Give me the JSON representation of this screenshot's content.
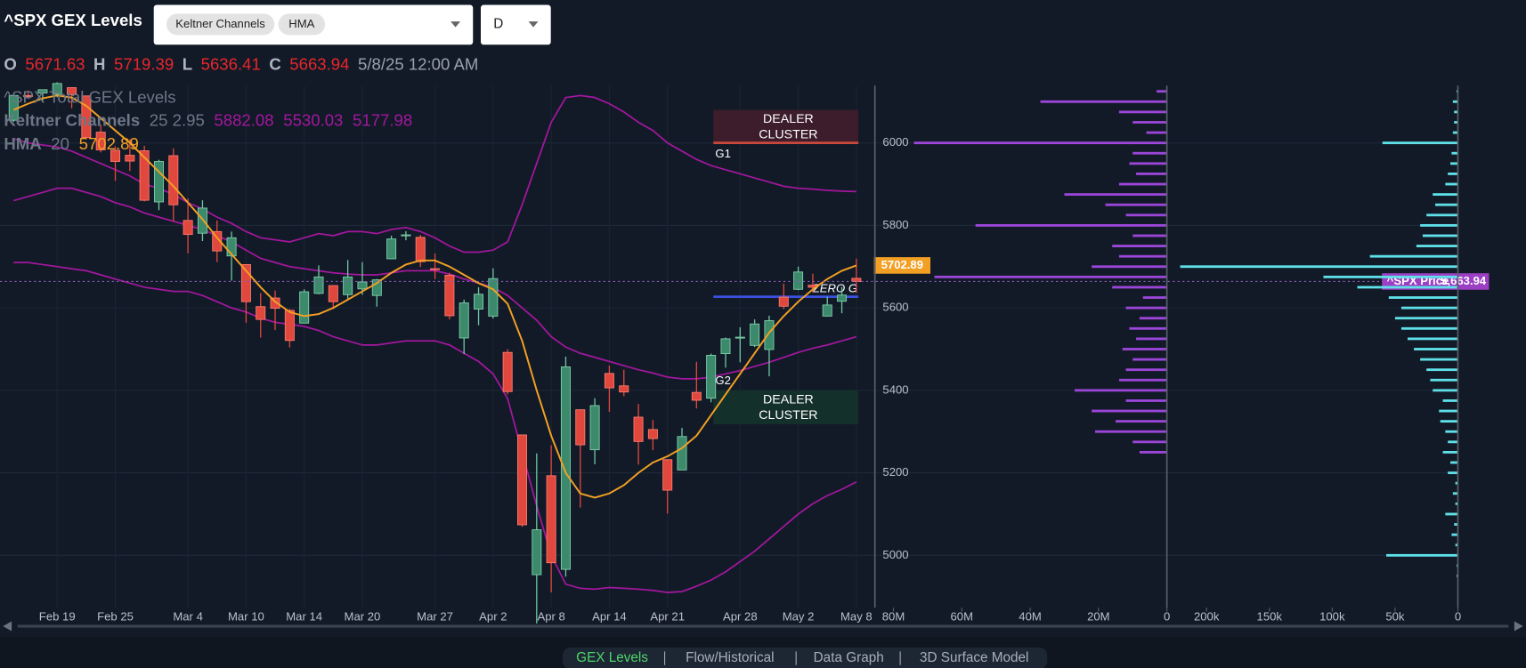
{
  "header": {
    "title": "^SPX GEX Levels",
    "indicators": [
      "Keltner Channels",
      "HMA"
    ],
    "interval": "D"
  },
  "ohlc_bar": {
    "labels": [
      "O",
      "H",
      "L",
      "C"
    ],
    "datetime": "5/8/25 12:00 AM"
  },
  "chart_data": [
    {
      "type": "candlestick",
      "legend_title": "^SPX Total GEX Levels",
      "categories": [
        null,
        null,
        null,
        "Feb 19",
        null,
        null,
        null,
        "Feb 25",
        null,
        null,
        null,
        null,
        "Mar 4",
        null,
        null,
        null,
        "Mar 10",
        null,
        null,
        null,
        "Mar 14",
        null,
        null,
        null,
        "Mar 20",
        null,
        null,
        null,
        null,
        "Mar 27",
        null,
        null,
        null,
        "Apr 2",
        null,
        null,
        null,
        "Apr 8",
        null,
        null,
        null,
        "Apr 14",
        null,
        null,
        null,
        "Apr 21",
        null,
        null,
        null,
        null,
        "Apr 28",
        null,
        null,
        null,
        "May 2",
        null,
        null,
        null,
        "May 8"
      ],
      "open": [
        6055,
        6115,
        6121,
        6118,
        6134,
        6114,
        6026,
        5982,
        5970,
        5981,
        5857,
        5969,
        5812,
        5781,
        5785,
        5726,
        5705,
        5603,
        5624,
        5594,
        5563,
        5635,
        5654,
        5632,
        5646,
        5630,
        5719,
        5775,
        5771,
        5695,
        5679,
        5527,
        5597,
        5580,
        5492,
        5292,
        4953,
        5193,
        4966,
        5353,
        5256,
        5441,
        5411,
        5335,
        5305,
        5232,
        5207,
        5395,
        5381,
        5489,
        5529,
        5509,
        5499,
        5626,
        5645,
        5655,
        5580,
        5616,
        5671.63
      ],
      "high": [
        6116,
        6127,
        6129,
        6147,
        6134,
        6114,
        6044,
        5992,
        6009,
        5993,
        5959,
        5987,
        5865,
        5861,
        5812,
        5785,
        5705,
        5636,
        5642,
        5597,
        5645,
        5703,
        5654,
        5716,
        5711,
        5670,
        5775,
        5786,
        5777,
        5732,
        5685,
        5620,
        5650,
        5696,
        5500,
        5293,
        5247,
        5267,
        5482,
        5353,
        5381,
        5460,
        5450,
        5367,
        5328,
        5232,
        5309,
        5469,
        5489,
        5528,
        5553,
        5572,
        5581,
        5659,
        5700,
        5683,
        5627,
        5651,
        5719.39
      ],
      "low": [
        6051,
        6107,
        6099,
        6111,
        6084,
        6008,
        5977,
        5908,
        5932,
        5858,
        5837,
        5810,
        5732,
        5762,
        5711,
        5666,
        5564,
        5528,
        5546,
        5504,
        5563,
        5633,
        5597,
        5622,
        5632,
        5603,
        5718,
        5764,
        5699,
        5670,
        5572,
        5488,
        5558,
        5574,
        5390,
        5069,
        4835,
        4910,
        4948,
        5116,
        5221,
        5348,
        5386,
        5220,
        5255,
        5101,
        5207,
        5356,
        5371,
        5455,
        5468,
        5505,
        5434,
        5597,
        5643,
        5637,
        5580,
        5587,
        5636.41
      ],
      "close": [
        6115,
        6114,
        6129,
        6144,
        6117,
        6013,
        5983,
        5955,
        5956,
        5861,
        5955,
        5850,
        5778,
        5842,
        5738,
        5770,
        5615,
        5572,
        5599,
        5521,
        5639,
        5675,
        5615,
        5675,
        5663,
        5668,
        5767,
        5777,
        5712,
        5693,
        5581,
        5612,
        5633,
        5671,
        5397,
        5074,
        5062,
        4982,
        5457,
        5268,
        5363,
        5406,
        5396,
        5276,
        5283,
        5158,
        5288,
        5376,
        5485,
        5525,
        5529,
        5561,
        5569,
        5604,
        5687,
        5650,
        5607,
        5631,
        5663.94
      ],
      "up_color": "#3c8a6b",
      "down_color": "#e0483e",
      "keltner": {
        "name": "Keltner Channels",
        "params": "25 2.95",
        "color": "#a3179e",
        "upper": [
          6010,
          6000,
          5995,
          5990,
          5980,
          5965,
          5950,
          5935,
          5920,
          5900,
          5890,
          5875,
          5855,
          5840,
          5820,
          5805,
          5785,
          5770,
          5765,
          5760,
          5770,
          5780,
          5775,
          5785,
          5785,
          5780,
          5790,
          5795,
          5785,
          5770,
          5750,
          5735,
          5735,
          5740,
          5760,
          5850,
          5950,
          6050,
          6110,
          6115,
          6110,
          6095,
          6075,
          6050,
          6030,
          6000,
          5980,
          5960,
          5945,
          5935,
          5925,
          5915,
          5905,
          5895,
          5890,
          5888,
          5885,
          5883,
          5882.08
        ],
        "middle": [
          5860,
          5870,
          5880,
          5890,
          5890,
          5880,
          5870,
          5855,
          5845,
          5830,
          5820,
          5810,
          5800,
          5790,
          5775,
          5760,
          5740,
          5720,
          5710,
          5700,
          5695,
          5690,
          5685,
          5682,
          5680,
          5680,
          5685,
          5690,
          5690,
          5690,
          5682,
          5670,
          5660,
          5650,
          5630,
          5600,
          5570,
          5530,
          5505,
          5490,
          5480,
          5470,
          5460,
          5450,
          5442,
          5432,
          5428,
          5428,
          5432,
          5440,
          5448,
          5458,
          5468,
          5480,
          5492,
          5502,
          5510,
          5520,
          5530.03
        ],
        "lower": [
          5710,
          5710,
          5705,
          5700,
          5695,
          5690,
          5680,
          5670,
          5660,
          5650,
          5645,
          5640,
          5640,
          5630,
          5615,
          5600,
          5590,
          5575,
          5565,
          5560,
          5555,
          5545,
          5530,
          5520,
          5510,
          5510,
          5515,
          5520,
          5520,
          5520,
          5510,
          5490,
          5470,
          5440,
          5380,
          5250,
          5120,
          5000,
          4930,
          4920,
          4918,
          4922,
          4920,
          4918,
          4915,
          4910,
          4912,
          4925,
          4940,
          4960,
          4985,
          5010,
          5040,
          5070,
          5100,
          5125,
          5145,
          5160,
          5177.98
        ]
      },
      "hma": {
        "name": "HMA",
        "params": "20",
        "color": "#f2a024",
        "values": [
          6080,
          6095,
          6108,
          6115,
          6110,
          6090,
          6060,
          6030,
          6000,
          5965,
          5930,
          5895,
          5855,
          5815,
          5770,
          5730,
          5690,
          5650,
          5615,
          5590,
          5580,
          5585,
          5600,
          5620,
          5640,
          5660,
          5685,
          5705,
          5715,
          5715,
          5700,
          5680,
          5660,
          5645,
          5610,
          5520,
          5400,
          5290,
          5200,
          5150,
          5140,
          5150,
          5170,
          5200,
          5225,
          5240,
          5260,
          5290,
          5340,
          5390,
          5440,
          5490,
          5540,
          5580,
          5615,
          5645,
          5670,
          5690,
          5702.89
        ]
      },
      "clusters": [
        {
          "lines": [
            "DEALER",
            "CLUSTER"
          ],
          "range": [
            6000,
            6080
          ],
          "color": "#3d1d2b"
        },
        {
          "lines": [
            "DEALER",
            "CLUSTER"
          ],
          "range": [
            5318,
            5400
          ],
          "color": "#14302a"
        }
      ],
      "levels": [
        {
          "label": "G1",
          "value": 6000,
          "color": "#c9483c"
        },
        {
          "label": "ZERO G",
          "value": 5627,
          "color": "#3b50e0"
        }
      ],
      "annotations": [
        {
          "text": "G2",
          "value": 5422
        }
      ],
      "price_tag": {
        "label": "^SPX Price",
        "value_label": "5,663.94",
        "color": "#9b3fc4"
      },
      "ylim": [
        4873,
        6139
      ],
      "yticks": [
        5000,
        5200,
        5400,
        5600,
        5800,
        6000
      ],
      "grid": true
    },
    {
      "type": "barh",
      "color": "#9b46d8",
      "y": [
        4950,
        4975,
        5000,
        5025,
        5050,
        5075,
        5100,
        5125,
        5150,
        5175,
        5200,
        5225,
        5250,
        5275,
        5300,
        5325,
        5350,
        5375,
        5400,
        5425,
        5450,
        5475,
        5500,
        5525,
        5550,
        5575,
        5600,
        5625,
        5650,
        5675,
        5700,
        5725,
        5750,
        5775,
        5800,
        5825,
        5850,
        5875,
        5900,
        5925,
        5950,
        5975,
        6000,
        6025,
        6050,
        6075,
        6100,
        6125
      ],
      "values": [
        0,
        0,
        0,
        0,
        0,
        0,
        0,
        0,
        0,
        0,
        0,
        0,
        8000000,
        10000000,
        21000000,
        15000000,
        22000000,
        12000000,
        27000000,
        14000000,
        12000000,
        10000000,
        13000000,
        9000000,
        11000000,
        8000000,
        12000000,
        7000000,
        16000000,
        68000000,
        22000000,
        14000000,
        16000000,
        10000000,
        56000000,
        12000000,
        18000000,
        30000000,
        14000000,
        9000000,
        11000000,
        10000000,
        74000000,
        6000000,
        10000000,
        14000000,
        37000000,
        3000000
      ],
      "xlim": [
        82000000,
        0
      ],
      "xticks": [
        {
          "value": 80000000,
          "label": "80M"
        },
        {
          "value": 60000000,
          "label": "60M"
        },
        {
          "value": 40000000,
          "label": "40M"
        },
        {
          "value": 20000000,
          "label": "20M"
        },
        0
      ]
    },
    {
      "type": "barh",
      "color": "#5fe0e8",
      "y": [
        4950,
        4975,
        5000,
        5025,
        5050,
        5075,
        5100,
        5125,
        5150,
        5175,
        5200,
        5225,
        5250,
        5275,
        5300,
        5325,
        5350,
        5375,
        5400,
        5425,
        5450,
        5475,
        5500,
        5525,
        5550,
        5575,
        5600,
        5625,
        5650,
        5675,
        5700,
        5725,
        5750,
        5775,
        5800,
        5825,
        5850,
        5875,
        5900,
        5925,
        5950,
        5975,
        6000,
        6025,
        6050,
        6075,
        6100,
        6125
      ],
      "values": [
        1000,
        1000,
        57000,
        2000,
        5000,
        3000,
        10000,
        2000,
        4000,
        2000,
        8000,
        6000,
        12000,
        8000,
        10000,
        14000,
        15000,
        12000,
        20000,
        22000,
        25000,
        30000,
        35000,
        40000,
        45000,
        50000,
        45000,
        55000,
        80000,
        107000,
        221000,
        70000,
        33000,
        28000,
        30000,
        25000,
        18000,
        20000,
        10000,
        8000,
        6000,
        5000,
        60000,
        4000,
        3000,
        3000,
        4000,
        1000
      ],
      "xlim": [
        230000,
        0
      ],
      "xticks": [
        {
          "value": 200000,
          "label": "200k"
        },
        {
          "value": 150000,
          "label": "150k"
        },
        {
          "value": 100000,
          "label": "100k"
        },
        {
          "value": 50000,
          "label": "50k"
        },
        0
      ]
    }
  ],
  "tabs": [
    "GEX Levels",
    "Flow/Historical",
    "Data Graph",
    "3D Surface Model"
  ]
}
